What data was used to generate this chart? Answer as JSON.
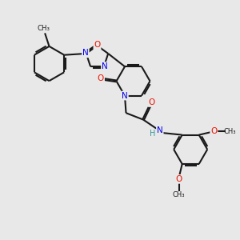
{
  "bg_color": "#e8e8e8",
  "bond_color": "#1a1a1a",
  "bond_width": 1.5,
  "atom_colors": {
    "N": "#0000ee",
    "O": "#ee1100",
    "H": "#339999",
    "C": "#1a1a1a"
  },
  "figsize": [
    3.0,
    3.0
  ],
  "dpi": 100,
  "xlim": [
    0,
    10
  ],
  "ylim": [
    0,
    10
  ]
}
